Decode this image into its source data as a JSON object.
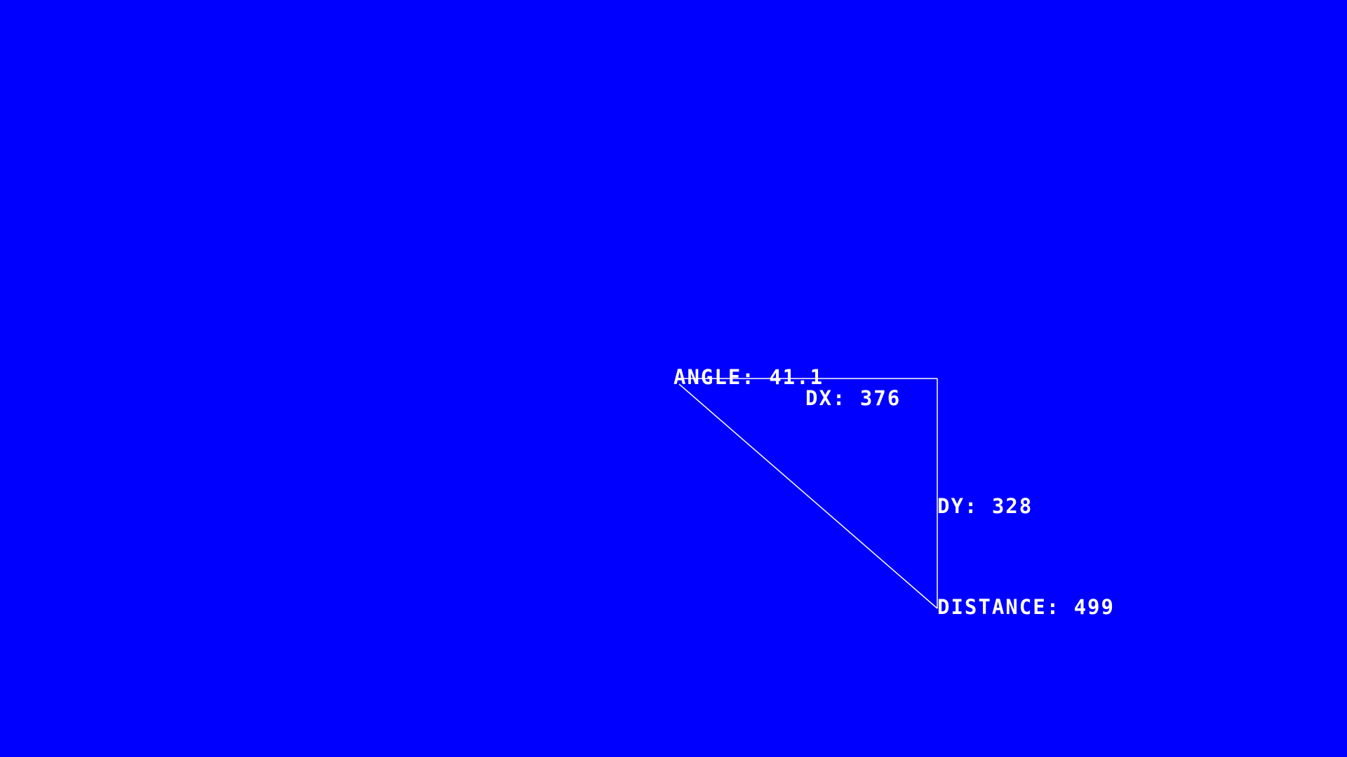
{
  "colors": {
    "background": "#0000ff",
    "foreground": "#ffffff"
  },
  "readout": {
    "angle": "ANGLE: 41.1",
    "dx": "DX: 376",
    "dy": "DY: 328",
    "distance": "DISTANCE: 499"
  }
}
